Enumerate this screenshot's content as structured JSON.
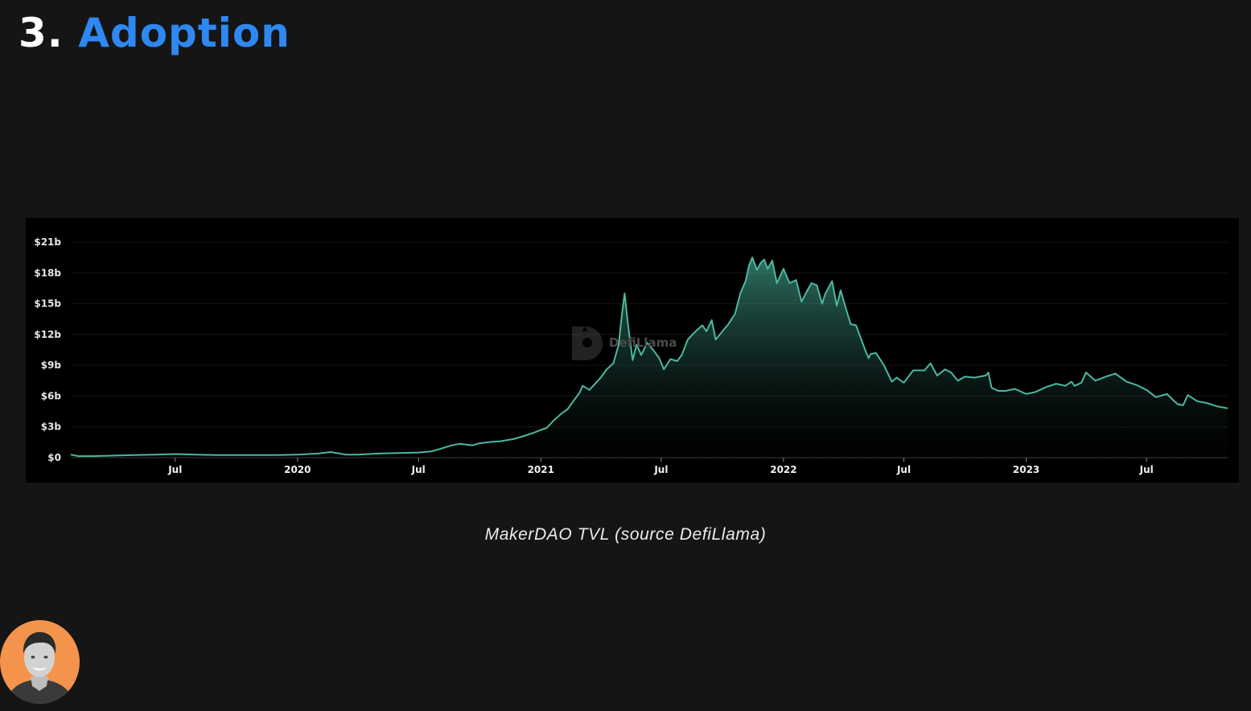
{
  "slide": {
    "title_number": "3.",
    "title_word": "Adoption",
    "caption": "MakerDAO TVL (source DefiLlama)",
    "watermark": "DefiLlama",
    "colors": {
      "background": "#151515",
      "title_number": "#ffffff",
      "title_word": "#2f88f0",
      "chart_panel": "#000000",
      "line": "#4cb8a0",
      "avatar_circle": "#f4944c"
    }
  },
  "avatar": {
    "icon": "presenter-avatar-icon"
  },
  "chart_data": {
    "type": "area",
    "title": "",
    "xlabel": "",
    "ylabel": "",
    "xlim": [
      "2019-01-25",
      "2023-10-31"
    ],
    "ylim": [
      0,
      21
    ],
    "y_unit": "billion USD",
    "y_ticks": [
      {
        "value": 0,
        "label": "$0"
      },
      {
        "value": 3,
        "label": "$3b"
      },
      {
        "value": 6,
        "label": "$6b"
      },
      {
        "value": 9,
        "label": "$9b"
      },
      {
        "value": 12,
        "label": "$12b"
      },
      {
        "value": 15,
        "label": "$15b"
      },
      {
        "value": 18,
        "label": "$18b"
      },
      {
        "value": 21,
        "label": "$21b"
      }
    ],
    "x_ticks": [
      {
        "date": "2019-07-01",
        "label": "Jul",
        "bold": false
      },
      {
        "date": "2020-01-01",
        "label": "2020",
        "bold": true
      },
      {
        "date": "2020-07-01",
        "label": "Jul",
        "bold": false
      },
      {
        "date": "2021-01-01",
        "label": "2021",
        "bold": true
      },
      {
        "date": "2021-07-01",
        "label": "Jul",
        "bold": false
      },
      {
        "date": "2022-01-01",
        "label": "2022",
        "bold": true
      },
      {
        "date": "2022-07-01",
        "label": "Jul",
        "bold": false
      },
      {
        "date": "2023-01-01",
        "label": "2023",
        "bold": true
      },
      {
        "date": "2023-07-01",
        "label": "Jul",
        "bold": false
      }
    ],
    "grid": true,
    "legend": "none",
    "series": [
      {
        "x": [
          "2019-01-25",
          "2019-02-05",
          "2019-03-01",
          "2019-04-01",
          "2019-05-01",
          "2019-06-01",
          "2019-07-01",
          "2019-08-01",
          "2019-09-01",
          "2019-10-01",
          "2019-11-01",
          "2019-12-01",
          "2020-01-01",
          "2020-02-01",
          "2020-02-20",
          "2020-03-13",
          "2020-04-01",
          "2020-05-01",
          "2020-06-01",
          "2020-07-01",
          "2020-07-20",
          "2020-08-05",
          "2020-08-20",
          "2020-09-01",
          "2020-09-20",
          "2020-10-01",
          "2020-10-20",
          "2020-11-01",
          "2020-11-20",
          "2020-12-01",
          "2020-12-20",
          "2021-01-01",
          "2021-01-10",
          "2021-01-20",
          "2021-02-01",
          "2021-02-10",
          "2021-02-20",
          "2021-02-28",
          "2021-03-05",
          "2021-03-15",
          "2021-03-25",
          "2021-04-01",
          "2021-04-10",
          "2021-04-20",
          "2021-04-28",
          "2021-05-03",
          "2021-05-07",
          "2021-05-12",
          "2021-05-19",
          "2021-05-25",
          "2021-06-01",
          "2021-06-10",
          "2021-06-20",
          "2021-06-28",
          "2021-07-05",
          "2021-07-15",
          "2021-07-25",
          "2021-08-01",
          "2021-08-10",
          "2021-08-20",
          "2021-09-01",
          "2021-09-07",
          "2021-09-15",
          "2021-09-21",
          "2021-10-01",
          "2021-10-10",
          "2021-10-20",
          "2021-10-28",
          "2021-11-05",
          "2021-11-10",
          "2021-11-15",
          "2021-11-22",
          "2021-11-28",
          "2021-12-03",
          "2021-12-08",
          "2021-12-15",
          "2021-12-22",
          "2022-01-01",
          "2022-01-10",
          "2022-01-20",
          "2022-01-28",
          "2022-02-05",
          "2022-02-12",
          "2022-02-20",
          "2022-02-28",
          "2022-03-05",
          "2022-03-15",
          "2022-03-22",
          "2022-03-28",
          "2022-04-05",
          "2022-04-12",
          "2022-04-20",
          "2022-04-28",
          "2022-05-05",
          "2022-05-09",
          "2022-05-12",
          "2022-05-20",
          "2022-06-01",
          "2022-06-13",
          "2022-06-20",
          "2022-07-01",
          "2022-07-15",
          "2022-08-01",
          "2022-08-10",
          "2022-08-20",
          "2022-09-01",
          "2022-09-10",
          "2022-09-20",
          "2022-10-01",
          "2022-10-15",
          "2022-11-01",
          "2022-11-05",
          "2022-11-10",
          "2022-11-20",
          "2022-12-01",
          "2022-12-15",
          "2023-01-01",
          "2023-01-15",
          "2023-02-01",
          "2023-02-15",
          "2023-03-01",
          "2023-03-10",
          "2023-03-15",
          "2023-03-25",
          "2023-04-01",
          "2023-04-15",
          "2023-05-01",
          "2023-05-15",
          "2023-06-01",
          "2023-06-15",
          "2023-07-01",
          "2023-07-15",
          "2023-08-01",
          "2023-08-10",
          "2023-08-17",
          "2023-08-25",
          "2023-09-01",
          "2023-09-15",
          "2023-10-01",
          "2023-10-15",
          "2023-10-31"
        ],
        "values": [
          0.3,
          0.15,
          0.15,
          0.2,
          0.25,
          0.3,
          0.35,
          0.3,
          0.25,
          0.25,
          0.25,
          0.25,
          0.3,
          0.4,
          0.55,
          0.3,
          0.3,
          0.4,
          0.45,
          0.5,
          0.6,
          0.9,
          1.2,
          1.35,
          1.2,
          1.4,
          1.55,
          1.6,
          1.8,
          2.0,
          2.4,
          2.7,
          2.9,
          3.6,
          4.3,
          4.7,
          5.6,
          6.3,
          7.0,
          6.6,
          7.3,
          7.8,
          8.6,
          9.2,
          11.0,
          14.0,
          16.0,
          13.0,
          9.5,
          11.0,
          10.0,
          11.2,
          10.4,
          9.7,
          8.6,
          9.6,
          9.4,
          10.0,
          11.5,
          12.2,
          12.9,
          12.3,
          13.4,
          11.5,
          12.3,
          13.0,
          14.0,
          16.0,
          17.2,
          18.7,
          19.5,
          18.3,
          19.0,
          19.3,
          18.4,
          19.2,
          17.0,
          18.4,
          17.0,
          17.3,
          15.2,
          16.2,
          17.0,
          16.8,
          15.0,
          16.0,
          17.2,
          14.8,
          16.3,
          14.5,
          13.0,
          12.9,
          11.5,
          10.3,
          9.7,
          10.1,
          10.2,
          9.0,
          7.4,
          7.8,
          7.3,
          8.5,
          8.5,
          9.2,
          8.0,
          8.6,
          8.3,
          7.5,
          7.9,
          7.8,
          8.0,
          8.3,
          6.8,
          6.5,
          6.5,
          6.7,
          6.2,
          6.4,
          6.9,
          7.2,
          7.0,
          7.4,
          7.0,
          7.3,
          8.3,
          7.5,
          7.9,
          8.2,
          7.4,
          7.1,
          6.6,
          5.9,
          6.2,
          5.6,
          5.2,
          5.1,
          6.1,
          5.5,
          5.3,
          5.0,
          4.8
        ]
      }
    ]
  }
}
